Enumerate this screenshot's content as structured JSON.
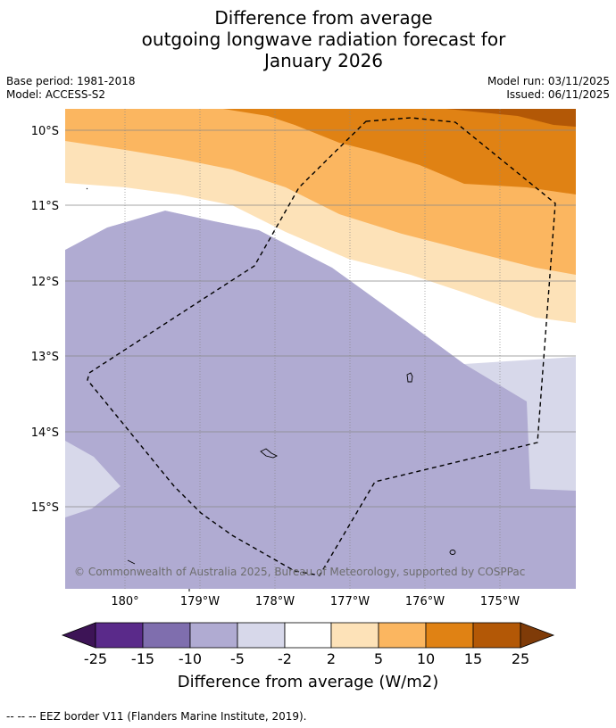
{
  "title": {
    "line1": "Difference from average",
    "line2": "outgoing longwave radiation forecast for",
    "line3": "January 2026"
  },
  "meta": {
    "base_period": "Base period: 1981-2018",
    "model": "Model: ACCESS-S2",
    "model_run": "Model run: 03/11/2025",
    "issued": "Issued: 06/11/2025"
  },
  "map": {
    "latitude_labels": [
      "10°S",
      "11°S",
      "12°S",
      "13°S",
      "14°S",
      "15°S"
    ],
    "longitude_labels": [
      "180°",
      "179°W",
      "178°W",
      "177°W",
      "176°W",
      "175°W"
    ],
    "copyright": "© Commonwealth of Australia 2025, Bureau of Meteorology, supported by COSPPac"
  },
  "colorbar": {
    "ticks": [
      "-25",
      "-15",
      "-10",
      "-5",
      "-2",
      "2",
      "5",
      "10",
      "15",
      "25"
    ],
    "label": "Difference from average (W/m2)",
    "colors": [
      "#3d1456",
      "#5a2a8a",
      "#7f6eae",
      "#b0abd2",
      "#d7d8ea",
      "#ffffff",
      "#fde2b8",
      "#fbb660",
      "#e08214",
      "#b35806",
      "#7f3b08"
    ]
  },
  "footer": {
    "legend": "--  --  -- EEZ border V11 (Flanders Marine Institute, 2019)."
  }
}
